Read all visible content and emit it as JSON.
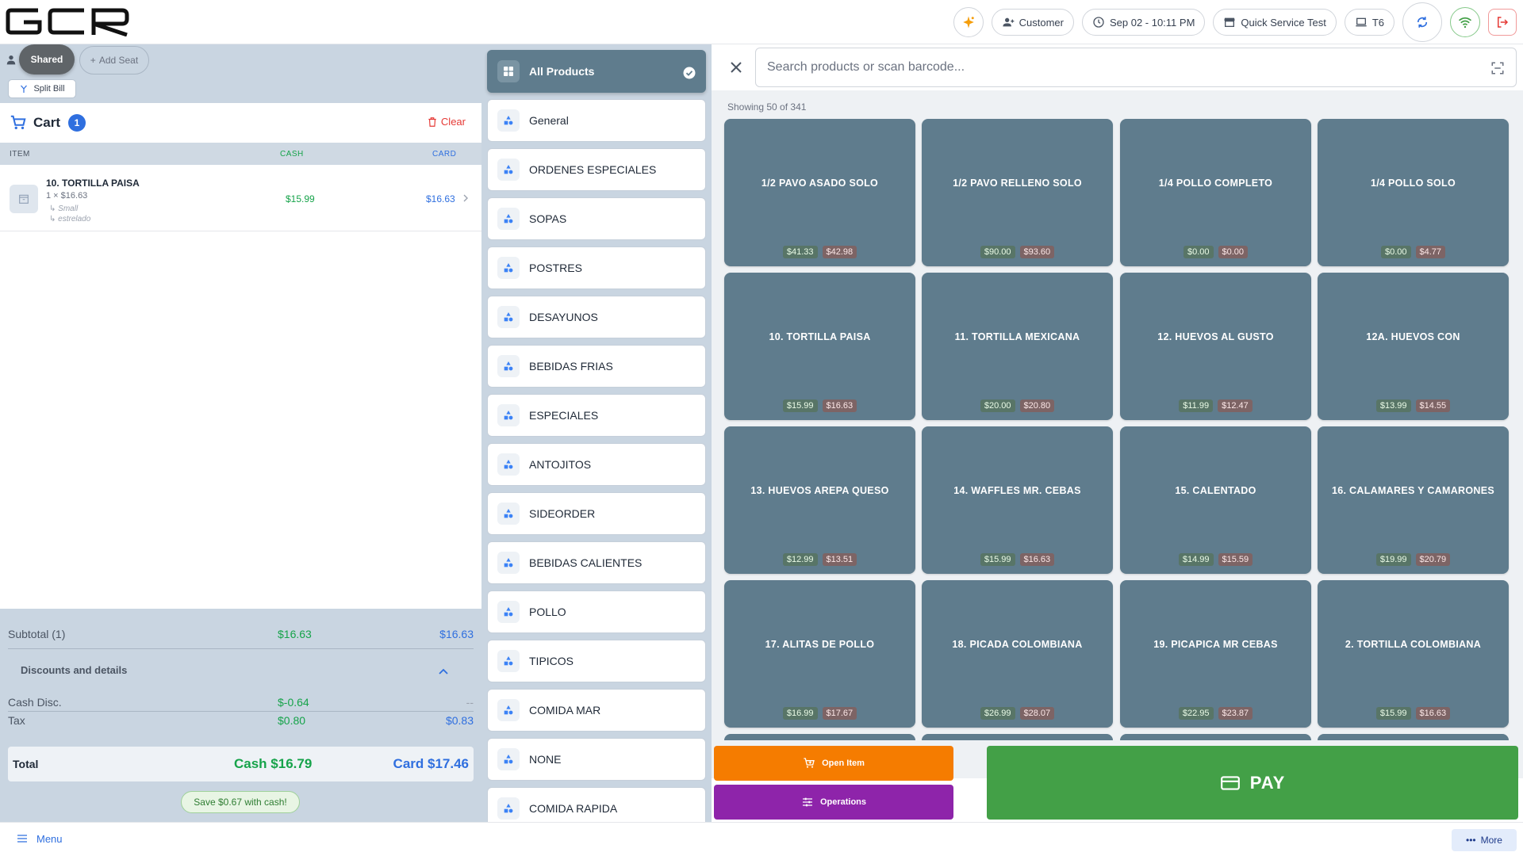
{
  "header": {
    "logo_text": "GCR",
    "customer_label": "Customer",
    "datetime": "Sep 02 - 10:11 PM",
    "store": "Quick Service Test",
    "terminal": "T6"
  },
  "seats": {
    "shared_label": "Shared",
    "add_seat_label": "Add Seat",
    "split_bill_label": "Split Bill"
  },
  "cart": {
    "title": "Cart",
    "count": "1",
    "clear_label": "Clear",
    "col_item": "ITEM",
    "col_cash": "CASH",
    "col_card": "CARD",
    "items": [
      {
        "name": "10. TORTILLA PAISA",
        "qty_line": "1 × $16.63",
        "modifiers": [
          "↳ Small",
          "↳ estrelado"
        ],
        "cash": "$15.99",
        "card": "$16.63"
      }
    ]
  },
  "totals": {
    "subtotal_label": "Subtotal (1)",
    "subtotal_cash": "$16.63",
    "subtotal_card": "$16.63",
    "discounts_label": "Discounts and details",
    "cash_disc_label": "Cash Disc.",
    "cash_disc_cash": "$-0.64",
    "cash_disc_card": "--",
    "tax_label": "Tax",
    "tax_cash": "$0.80",
    "tax_card": "$0.83",
    "total_label": "Total",
    "total_cash": "Cash $16.79",
    "total_card": "Card $17.46",
    "save_msg": "Save $0.67 with cash!"
  },
  "categories": [
    {
      "label": "All Products",
      "active": true
    },
    {
      "label": "General"
    },
    {
      "label": "ORDENES ESPECIALES"
    },
    {
      "label": "SOPAS"
    },
    {
      "label": "POSTRES"
    },
    {
      "label": "DESAYUNOS"
    },
    {
      "label": "BEBIDAS FRIAS"
    },
    {
      "label": "ESPECIALES"
    },
    {
      "label": "ANTOJITOS"
    },
    {
      "label": "SIDEORDER"
    },
    {
      "label": "BEBIDAS CALIENTES"
    },
    {
      "label": "POLLO"
    },
    {
      "label": "TIPICOS"
    },
    {
      "label": "COMIDA MAR"
    },
    {
      "label": "NONE"
    },
    {
      "label": "COMIDA RAPIDA"
    }
  ],
  "products": {
    "search_placeholder": "Search products or scan barcode...",
    "showing": "Showing 50 of 341",
    "items": [
      {
        "name": "1/2 PAVO ASADO SOLO",
        "cash": "$41.33",
        "card": "$42.98"
      },
      {
        "name": "1/2 PAVO RELLENO SOLO",
        "cash": "$90.00",
        "card": "$93.60"
      },
      {
        "name": "1/4 POLLO COMPLETO",
        "cash": "$0.00",
        "card": "$0.00"
      },
      {
        "name": "1/4 POLLO SOLO",
        "cash": "$0.00",
        "card": "$4.77"
      },
      {
        "name": "10. TORTILLA PAISA",
        "cash": "$15.99",
        "card": "$16.63"
      },
      {
        "name": "11. TORTILLA MEXICANA",
        "cash": "$20.00",
        "card": "$20.80"
      },
      {
        "name": "12. HUEVOS AL GUSTO",
        "cash": "$11.99",
        "card": "$12.47"
      },
      {
        "name": "12A. HUEVOS CON",
        "cash": "$13.99",
        "card": "$14.55"
      },
      {
        "name": "13. HUEVOS AREPA QUESO",
        "cash": "$12.99",
        "card": "$13.51"
      },
      {
        "name": "14. WAFFLES  MR. CEBAS",
        "cash": "$15.99",
        "card": "$16.63"
      },
      {
        "name": "15. CALENTADO",
        "cash": "$14.99",
        "card": "$15.59"
      },
      {
        "name": "16. CALAMARES Y CAMARONES",
        "cash": "$19.99",
        "card": "$20.79"
      },
      {
        "name": "17. ALITAS  DE POLLO",
        "cash": "$16.99",
        "card": "$17.67"
      },
      {
        "name": "18. PICADA COLOMBIANA",
        "cash": "$26.99",
        "card": "$28.07"
      },
      {
        "name": "19. PICAPICA MR CEBAS",
        "cash": "$22.95",
        "card": "$23.87"
      },
      {
        "name": "2. TORTILLA COLOMBIANA",
        "cash": "$15.99",
        "card": "$16.63"
      }
    ]
  },
  "actions": {
    "open_item": "Open Item",
    "operations": "Operations",
    "pay": "PAY"
  },
  "footer": {
    "menu": "Menu",
    "more": "More"
  },
  "colors": {
    "tile": "#5f7c8d",
    "cash_green": "#16a34a",
    "card_blue": "#2f6fdf",
    "open_item_orange": "#f57c00",
    "operations_purple": "#8e24aa",
    "pay_green": "#43a047"
  }
}
